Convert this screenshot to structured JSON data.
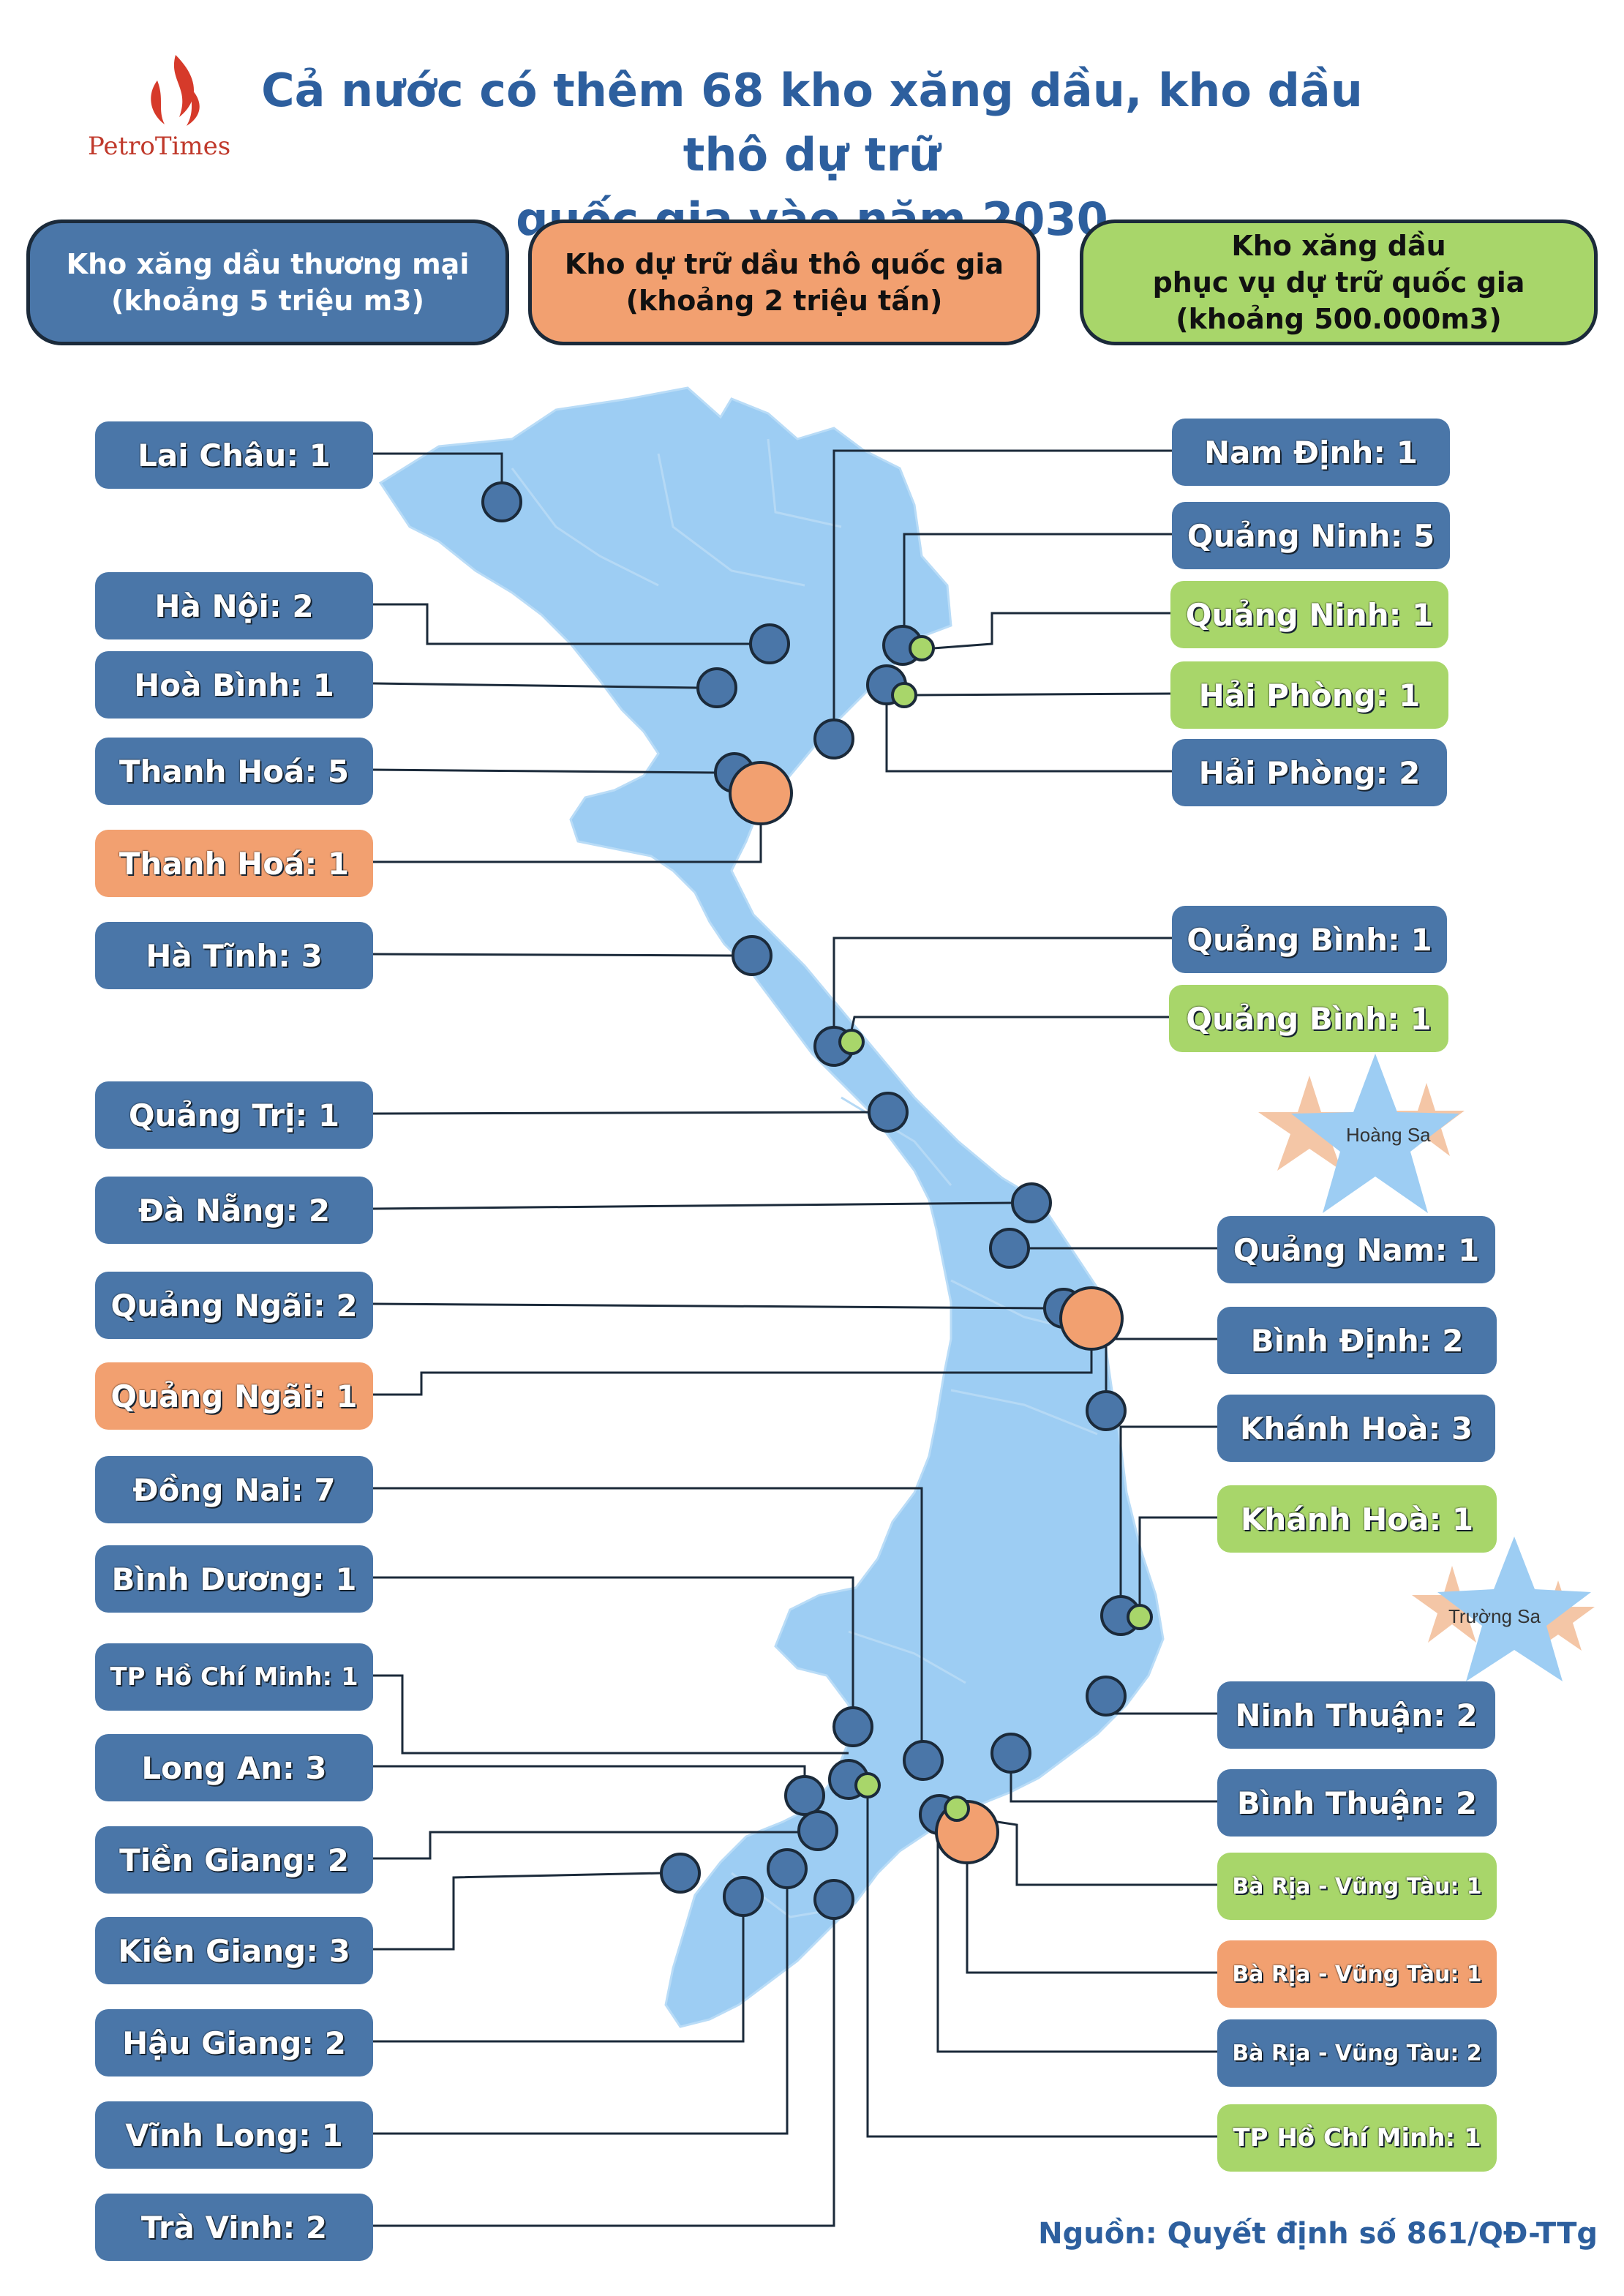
{
  "title_lines": [
    "Cả nước có thêm 68 kho xăng dầu, kho dầu thô dự trữ",
    "quốc gia vào năm 2030"
  ],
  "logo": {
    "part1": "Petro",
    "part2": "Times"
  },
  "colors": {
    "commercial": "#4a76a8",
    "crude": "#f2a070",
    "reserve": "#a8d66a",
    "map": "#9dcdf3",
    "line": "#1b2a3a",
    "title": "#2d5f9e"
  },
  "legend": [
    {
      "type": "commercial",
      "lines": [
        "Kho xăng dầu thương mại",
        "(khoảng 5 triệu m3)"
      ]
    },
    {
      "type": "crude",
      "lines": [
        "Kho dự trữ dầu thô quốc gia",
        "(khoảng 2 triệu tấn)"
      ]
    },
    {
      "type": "reserve",
      "lines": [
        "Kho xăng dầu",
        "phục vụ dự trữ quốc gia",
        "(khoảng 500.000m3)"
      ]
    }
  ],
  "islands": [
    {
      "name": "Hoàng Sa"
    },
    {
      "name": "Trường Sa"
    }
  ],
  "left_labels": [
    {
      "text": "Lai Châu: 1",
      "type": "commercial"
    },
    {
      "text": "Hà Nội: 2",
      "type": "commercial"
    },
    {
      "text": "Hoà Bình: 1",
      "type": "commercial"
    },
    {
      "text": "Thanh Hoá: 5",
      "type": "commercial"
    },
    {
      "text": "Thanh Hoá: 1",
      "type": "crude"
    },
    {
      "text": "Hà Tĩnh: 3",
      "type": "commercial"
    },
    {
      "text": "Quảng Trị: 1",
      "type": "commercial"
    },
    {
      "text": "Đà Nẵng: 2",
      "type": "commercial"
    },
    {
      "text": "Quảng Ngãi: 2",
      "type": "commercial"
    },
    {
      "text": "Quảng Ngãi: 1",
      "type": "crude"
    },
    {
      "text": "Đồng Nai: 7",
      "type": "commercial"
    },
    {
      "text": "Bình Dương: 1",
      "type": "commercial"
    },
    {
      "text": "TP Hồ Chí Minh: 1",
      "type": "commercial"
    },
    {
      "text": "Long An: 3",
      "type": "commercial"
    },
    {
      "text": "Tiền Giang: 2",
      "type": "commercial"
    },
    {
      "text": "Kiên Giang: 3",
      "type": "commercial"
    },
    {
      "text": "Hậu Giang: 2",
      "type": "commercial"
    },
    {
      "text": "Vĩnh Long: 1",
      "type": "commercial"
    },
    {
      "text": "Trà Vinh: 2",
      "type": "commercial"
    }
  ],
  "right_labels": [
    {
      "text": "Nam Định: 1",
      "type": "commercial"
    },
    {
      "text": "Quảng Ninh: 5",
      "type": "commercial"
    },
    {
      "text": "Quảng Ninh: 1",
      "type": "reserve"
    },
    {
      "text": "Hải Phòng: 1",
      "type": "reserve"
    },
    {
      "text": "Hải Phòng: 2",
      "type": "commercial"
    },
    {
      "text": "Quảng Bình: 1",
      "type": "commercial"
    },
    {
      "text": "Quảng Bình: 1",
      "type": "reserve"
    },
    {
      "text": "Quảng Nam: 1",
      "type": "commercial"
    },
    {
      "text": "Bình Định: 2",
      "type": "commercial"
    },
    {
      "text": "Khánh Hoà: 3",
      "type": "commercial"
    },
    {
      "text": "Khánh Hoà: 1",
      "type": "reserve"
    },
    {
      "text": "Ninh Thuận: 2",
      "type": "commercial"
    },
    {
      "text": "Bình Thuận: 2",
      "type": "commercial"
    },
    {
      "text": "Bà Rịa - Vũng Tàu: 1",
      "type": "reserve"
    },
    {
      "text": "Bà Rịa - Vũng Tàu: 1",
      "type": "crude"
    },
    {
      "text": "Bà Rịa - Vũng Tàu: 2",
      "type": "commercial"
    },
    {
      "text": "TP Hồ Chí Minh: 1",
      "type": "reserve"
    }
  ],
  "source": "Nguồn: Quyết định số 861/QĐ-TTg"
}
